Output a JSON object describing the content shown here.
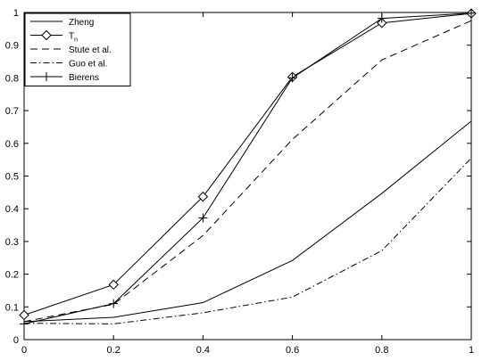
{
  "chart_data": {
    "type": "line",
    "x": [
      0,
      0.2,
      0.4,
      0.6,
      0.8,
      1
    ],
    "xlim": [
      0,
      1
    ],
    "ylim": [
      0,
      1
    ],
    "xticks": [
      "0",
      "0.2",
      "0.4",
      "0.6",
      "0.8",
      "1"
    ],
    "yticks": [
      "0",
      "0.1",
      "0.2",
      "0.3",
      "0.4",
      "0.5",
      "0.6",
      "0.7",
      "0.8",
      "0.9",
      "1"
    ],
    "grid": false,
    "legend_position": "top-left",
    "series": [
      {
        "name": "Zheng",
        "style": "solid",
        "marker": "none",
        "values": [
          0.055,
          0.068,
          0.113,
          0.242,
          0.447,
          0.668
        ]
      },
      {
        "name": "T",
        "subscript": "n",
        "style": "solid",
        "marker": "diamond",
        "values": [
          0.075,
          0.168,
          0.437,
          0.803,
          0.968,
          0.997
        ]
      },
      {
        "name": "Stute et al.",
        "style": "dashed",
        "marker": "none",
        "values": [
          0.055,
          0.108,
          0.318,
          0.612,
          0.855,
          0.975
        ]
      },
      {
        "name": "Guo et al.",
        "style": "dashdot",
        "marker": "none",
        "values": [
          0.05,
          0.048,
          0.082,
          0.13,
          0.272,
          0.555
        ]
      },
      {
        "name": "Bierens",
        "style": "solid",
        "marker": "plus",
        "values": [
          0.048,
          0.11,
          0.372,
          0.8,
          0.982,
          0.998
        ]
      }
    ]
  }
}
